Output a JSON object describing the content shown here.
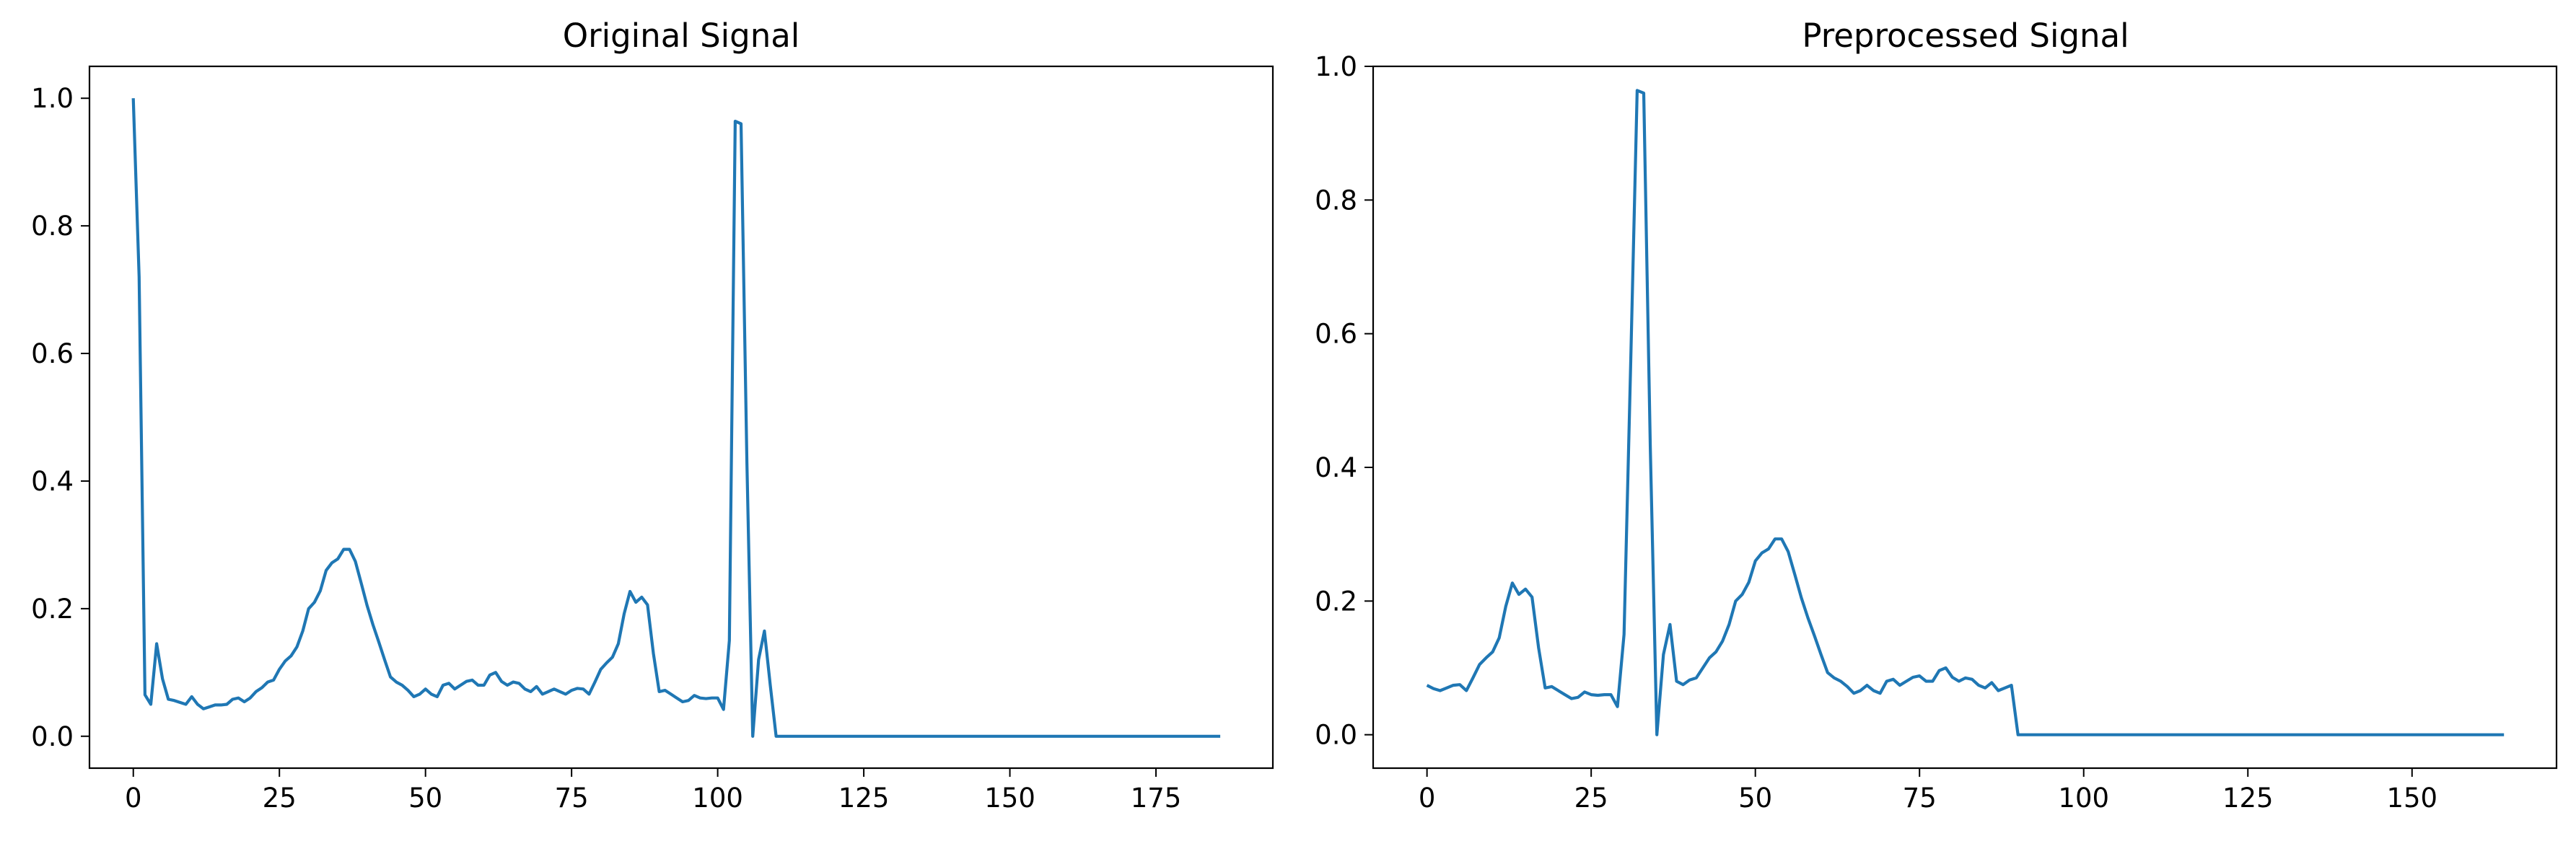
{
  "chart_data": [
    {
      "type": "line",
      "title": "Original Signal",
      "xlabel": "",
      "ylabel": "",
      "xlim": [
        -7.5,
        195
      ],
      "ylim": [
        -0.05,
        1.05
      ],
      "xticks": [
        0,
        25,
        50,
        75,
        100,
        125,
        150,
        175
      ],
      "yticks": [
        0.0,
        0.2,
        0.4,
        0.6,
        0.8,
        1.0
      ],
      "grid": false,
      "color": "#1f77b4",
      "series": [
        {
          "x": [
            0,
            1,
            2,
            3,
            4,
            5,
            6,
            7,
            8,
            9,
            10,
            11,
            12,
            13,
            14,
            15,
            16,
            17,
            18,
            19,
            20,
            21,
            22,
            23,
            24,
            25,
            26,
            27,
            28,
            29,
            30,
            31,
            32,
            33,
            34,
            35,
            36,
            37,
            38,
            39,
            40,
            41,
            42,
            43,
            44,
            45,
            46,
            47,
            48,
            49,
            50,
            51,
            52,
            53,
            54,
            55,
            56,
            57,
            58,
            59,
            60,
            61,
            62,
            63,
            64,
            65,
            66,
            67,
            68,
            69,
            70,
            71,
            72,
            73,
            74,
            75,
            76,
            77,
            78,
            79,
            80,
            81,
            82,
            83,
            84,
            85,
            86,
            87,
            88,
            89,
            90,
            91,
            92,
            93,
            94,
            95,
            96,
            97,
            98,
            99,
            100,
            101,
            102,
            103,
            104,
            105,
            106,
            107,
            108,
            109,
            110,
            111,
            112,
            113,
            114,
            186
          ],
          "y": [
            1.0,
            0.72,
            0.065,
            0.05,
            0.145,
            0.09,
            0.058,
            0.056,
            0.053,
            0.05,
            0.062,
            0.05,
            0.043,
            0.046,
            0.049,
            0.049,
            0.05,
            0.058,
            0.06,
            0.054,
            0.06,
            0.07,
            0.076,
            0.085,
            0.088,
            0.105,
            0.118,
            0.126,
            0.14,
            0.165,
            0.2,
            0.21,
            0.228,
            0.26,
            0.272,
            0.278,
            0.293,
            0.293,
            0.274,
            0.24,
            0.205,
            0.175,
            0.148,
            0.12,
            0.093,
            0.085,
            0.08,
            0.072,
            0.062,
            0.066,
            0.074,
            0.066,
            0.062,
            0.08,
            0.083,
            0.074,
            0.08,
            0.086,
            0.088,
            0.08,
            0.08,
            0.096,
            0.1,
            0.086,
            0.08,
            0.085,
            0.083,
            0.074,
            0.07,
            0.078,
            0.066,
            0.07,
            0.074,
            0.07,
            0.066,
            0.072,
            0.075,
            0.074,
            0.066,
            0.085,
            0.105,
            0.115,
            0.124,
            0.145,
            0.192,
            0.227,
            0.21,
            0.218,
            0.206,
            0.13,
            0.07,
            0.072,
            0.066,
            0.06,
            0.054,
            0.056,
            0.064,
            0.06,
            0.059,
            0.06,
            0.06,
            0.042,
            0.15,
            0.964,
            0.96,
            0.43,
            0.0,
            0.12,
            0.165,
            0.08,
            0.0,
            0.0,
            0.0,
            0.0,
            0.0,
            0.0
          ]
        }
      ]
    },
    {
      "type": "line",
      "title": "Preprocessed Signal",
      "xlabel": "",
      "ylabel": "",
      "xlim": [
        -8.2,
        172
      ],
      "ylim": [
        -0.05,
        1.0
      ],
      "xticks": [
        0,
        25,
        50,
        75,
        100,
        125,
        150
      ],
      "yticks": [
        0.0,
        0.2,
        0.4,
        0.6,
        0.8,
        1.0
      ],
      "grid": false,
      "color": "#1f77b4",
      "series": [
        {
          "x": [
            0,
            1,
            2,
            3,
            4,
            5,
            6,
            7,
            8,
            9,
            10,
            11,
            12,
            13,
            14,
            15,
            16,
            17,
            18,
            19,
            20,
            21,
            22,
            23,
            24,
            25,
            26,
            27,
            28,
            29,
            30,
            31,
            32,
            33,
            34,
            35,
            36,
            37,
            38,
            39,
            40,
            41,
            42,
            43,
            44,
            45,
            46,
            47,
            48,
            49,
            50,
            51,
            52,
            53,
            54,
            55,
            56,
            57,
            58,
            59,
            60,
            61,
            62,
            63,
            64,
            65,
            66,
            67,
            68,
            69,
            70,
            71,
            72,
            73,
            74,
            75,
            76,
            77,
            78,
            79,
            80,
            81,
            82,
            83,
            84,
            85,
            86,
            87,
            88,
            89,
            90,
            91,
            92,
            164
          ],
          "y": [
            0.074,
            0.069,
            0.066,
            0.07,
            0.074,
            0.075,
            0.066,
            0.085,
            0.105,
            0.115,
            0.124,
            0.145,
            0.192,
            0.227,
            0.21,
            0.218,
            0.206,
            0.13,
            0.07,
            0.072,
            0.066,
            0.06,
            0.054,
            0.056,
            0.064,
            0.06,
            0.059,
            0.06,
            0.06,
            0.042,
            0.15,
            0.55,
            0.964,
            0.96,
            0.43,
            0.0,
            0.12,
            0.165,
            0.08,
            0.075,
            0.082,
            0.085,
            0.1,
            0.115,
            0.124,
            0.14,
            0.165,
            0.2,
            0.21,
            0.228,
            0.26,
            0.272,
            0.278,
            0.293,
            0.293,
            0.274,
            0.24,
            0.205,
            0.175,
            0.148,
            0.12,
            0.093,
            0.085,
            0.08,
            0.072,
            0.062,
            0.066,
            0.074,
            0.066,
            0.062,
            0.08,
            0.083,
            0.074,
            0.08,
            0.086,
            0.088,
            0.08,
            0.08,
            0.096,
            0.1,
            0.086,
            0.08,
            0.085,
            0.083,
            0.074,
            0.07,
            0.078,
            0.066,
            0.07,
            0.074,
            0.0,
            0.0,
            0.0,
            0.0
          ]
        }
      ]
    }
  ]
}
